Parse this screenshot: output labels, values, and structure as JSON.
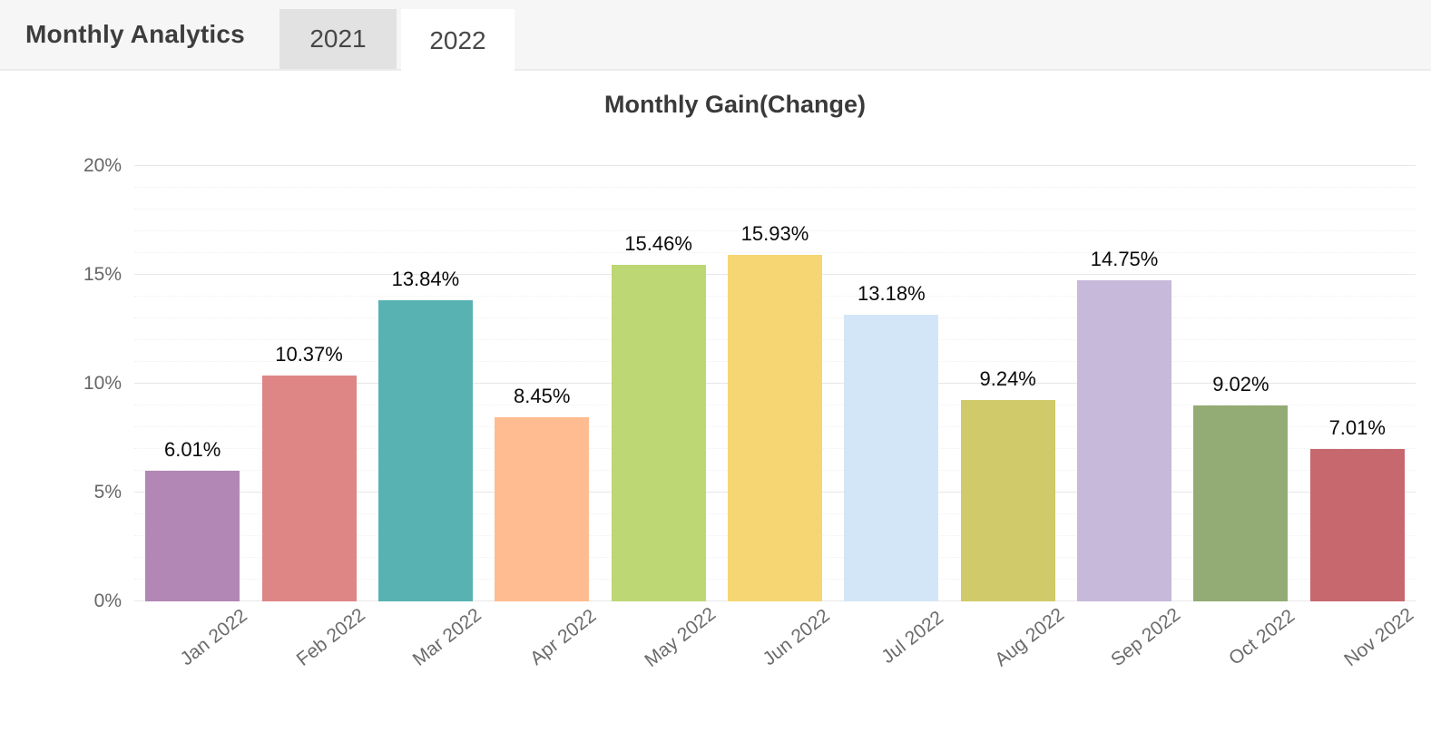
{
  "header": {
    "title": "Monthly Analytics",
    "tabs": [
      {
        "label": "2021",
        "active": false
      },
      {
        "label": "2022",
        "active": true
      }
    ]
  },
  "chart_data": {
    "type": "bar",
    "title": "Monthly Gain(Change)",
    "categories": [
      "Jan 2022",
      "Feb 2022",
      "Mar 2022",
      "Apr 2022",
      "May 2022",
      "Jun 2022",
      "Jul 2022",
      "Aug 2022",
      "Sep 2022",
      "Oct 2022",
      "Nov 2022"
    ],
    "values": [
      6.01,
      10.37,
      13.84,
      8.45,
      15.46,
      15.93,
      13.18,
      9.24,
      14.75,
      9.02,
      7.01
    ],
    "value_labels": [
      "6.01%",
      "10.37%",
      "13.84%",
      "8.45%",
      "15.46%",
      "15.93%",
      "13.18%",
      "9.24%",
      "14.75%",
      "9.02%",
      "7.01%"
    ],
    "bar_colors": [
      "#b287b5",
      "#de8585",
      "#59b2b2",
      "#ffbc90",
      "#bcd773",
      "#f5d672",
      "#d3e6f7",
      "#d0ca6a",
      "#c6b9d9",
      "#93ab74",
      "#c6686e"
    ],
    "y_tick_labels": [
      "0%",
      "5%",
      "10%",
      "15%",
      "20%"
    ],
    "ylim": [
      0,
      20
    ],
    "y_major_step": 5,
    "y_minor_step": 1,
    "xlabel": "",
    "ylabel": "",
    "grid": true,
    "legend": false,
    "x_tick_rotation_deg": -38
  }
}
